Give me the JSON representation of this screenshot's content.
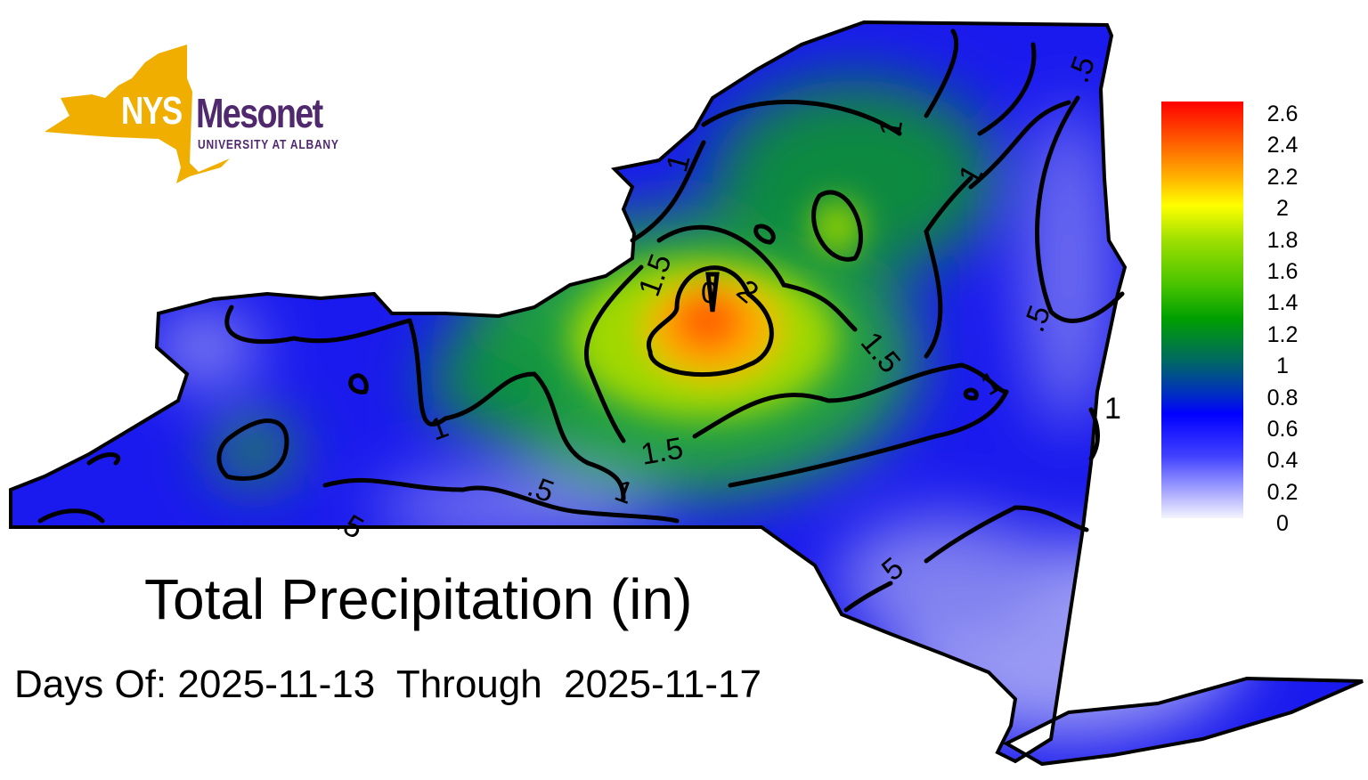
{
  "logo": {
    "nys": "NYS",
    "name": "Mesonet",
    "org": "UNIVERSITY AT ALBANY",
    "gold": "#f0ae00",
    "purple": "#50286e"
  },
  "title": "Total Precipitation (in)",
  "dates": {
    "text": "Days Of: 2025-11-13  Through  2025-11-17",
    "start": "2025-11-13",
    "end": "2025-11-17"
  },
  "legend": {
    "ticks": [
      "2.6",
      "2.4",
      "2.2",
      "2",
      "1.8",
      "1.6",
      "1.4",
      "1.2",
      "1",
      "0.8",
      "0.6",
      "0.4",
      "0.2",
      "0"
    ],
    "min": 0,
    "max": 2.6,
    "units": "in"
  },
  "contour_labels": [
    "1",
    "1",
    "1",
    ".5",
    "1.5",
    "2",
    "0",
    "1.5",
    "1",
    "1.5",
    "1",
    "1",
    ".5",
    ".5",
    ".5",
    ".5",
    "1"
  ],
  "map_colors": {
    "low": "#f4f4ff",
    "mid": "#0000ff",
    "green": "#00a000",
    "yellow": "#ffff00",
    "red": "#ff0000"
  }
}
